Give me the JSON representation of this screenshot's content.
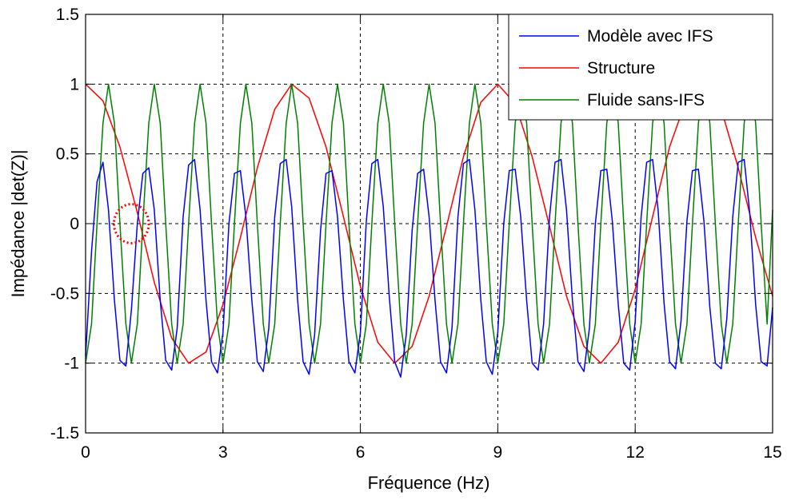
{
  "chart_data": {
    "type": "line",
    "title": "",
    "xlabel": "Fréquence (Hz)",
    "ylabel": "Impédance |det(Z)|",
    "xlim": [
      0,
      15
    ],
    "ylim": [
      -1.5,
      1.5
    ],
    "xticks": [
      0,
      3,
      6,
      9,
      12,
      15
    ],
    "xtick_labels": [
      "0",
      "3",
      "6",
      "9",
      "12",
      "15"
    ],
    "yticks": [
      -1.5,
      -1,
      -0.5,
      0,
      0.5,
      1,
      1.5
    ],
    "ytick_labels": [
      "-1.5",
      "-1",
      "-0.5",
      "0",
      "0.5",
      "1",
      "1.5"
    ],
    "grid": true,
    "legend_position": "top-right",
    "series": [
      {
        "name": "Modèle avec IFS",
        "color": "#0000ff",
        "x": [
          0.0,
          0.13,
          0.25,
          0.38,
          0.5,
          0.63,
          0.75,
          0.88,
          1.0,
          1.13,
          1.25,
          1.38,
          1.5,
          1.63,
          1.75,
          1.88,
          2.0,
          2.13,
          2.25,
          2.38,
          2.5,
          2.63,
          2.75,
          2.88,
          3.0,
          3.13,
          3.25,
          3.38,
          3.5,
          3.63,
          3.75,
          3.88,
          4.0,
          4.13,
          4.25,
          4.38,
          4.5,
          4.63,
          4.75,
          4.88,
          5.0,
          5.13,
          5.25,
          5.38,
          5.5,
          5.63,
          5.75,
          5.88,
          6.0,
          6.13,
          6.25,
          6.38,
          6.5,
          6.63,
          6.75,
          6.88,
          7.0,
          7.13,
          7.25,
          7.38,
          7.5,
          7.63,
          7.75,
          7.88,
          8.0,
          8.13,
          8.25,
          8.38,
          8.5,
          8.63,
          8.75,
          8.88,
          9.0,
          9.13,
          9.25,
          9.38,
          9.5,
          9.63,
          9.75,
          9.88,
          10.0,
          10.13,
          10.25,
          10.38,
          10.5,
          10.63,
          10.75,
          10.88,
          11.0,
          11.13,
          11.25,
          11.38,
          11.5,
          11.63,
          11.75,
          11.88,
          12.0,
          12.13,
          12.25,
          12.38,
          12.5,
          12.63,
          12.75,
          12.88,
          13.0,
          13.13,
          13.25,
          13.38,
          13.5,
          13.63,
          13.75,
          13.88,
          14.0,
          14.13,
          14.25,
          14.38,
          14.5,
          14.63,
          14.75,
          14.88,
          15.0
        ],
        "y": [
          -0.95,
          -0.2,
          0.3,
          0.44,
          0.1,
          -0.55,
          -0.98,
          -1.02,
          -0.62,
          0.0,
          0.36,
          0.4,
          0.1,
          -0.55,
          -0.98,
          -1.05,
          -0.75,
          0.05,
          0.42,
          0.46,
          0.1,
          -0.55,
          -0.99,
          -1.07,
          -0.78,
          0.0,
          0.36,
          0.38,
          0.05,
          -0.55,
          -0.99,
          -1.06,
          -0.75,
          0.05,
          0.43,
          0.46,
          0.12,
          -0.55,
          -0.99,
          -1.08,
          -0.8,
          -0.05,
          0.36,
          0.38,
          0.05,
          -0.55,
          -0.99,
          -1.07,
          -0.78,
          0.02,
          0.43,
          0.46,
          0.12,
          -0.52,
          -0.99,
          -1.1,
          -0.8,
          -0.05,
          0.36,
          0.39,
          0.05,
          -0.55,
          -0.99,
          -1.07,
          -0.75,
          0.05,
          0.43,
          0.46,
          0.1,
          -0.55,
          -0.99,
          -1.08,
          -0.78,
          0.0,
          0.38,
          0.39,
          0.05,
          -0.55,
          -1.0,
          -1.05,
          -0.72,
          0.05,
          0.44,
          0.46,
          0.1,
          -0.55,
          -0.99,
          -1.06,
          -0.75,
          0.0,
          0.38,
          0.39,
          0.02,
          -0.58,
          -1.0,
          -1.05,
          -0.7,
          0.05,
          0.44,
          0.46,
          0.1,
          -0.57,
          -0.99,
          -1.04,
          -0.7,
          0.02,
          0.38,
          0.39,
          0.02,
          -0.6,
          -1.0,
          -1.04,
          -0.68,
          0.05,
          0.44,
          0.46,
          0.08,
          -0.58,
          -0.99,
          -1.02,
          -0.6
        ]
      },
      {
        "name": "Structure",
        "color": "#ff0000",
        "x": [
          0.0,
          0.38,
          0.75,
          1.13,
          1.5,
          1.88,
          2.25,
          2.63,
          3.0,
          3.38,
          3.75,
          4.13,
          4.5,
          4.88,
          5.25,
          5.63,
          6.0,
          6.38,
          6.75,
          7.13,
          7.5,
          7.88,
          8.25,
          8.63,
          9.0,
          9.38,
          9.75,
          10.13,
          10.5,
          10.88,
          11.25,
          11.63,
          12.0,
          12.38,
          12.75,
          13.13,
          13.5,
          13.88,
          14.25,
          14.63,
          15.0
        ],
        "y": [
          1.0,
          0.88,
          0.55,
          0.08,
          -0.42,
          -0.82,
          -1.0,
          -0.92,
          -0.58,
          -0.1,
          0.4,
          0.82,
          1.0,
          0.9,
          0.55,
          0.05,
          -0.45,
          -0.85,
          -1.0,
          -0.88,
          -0.52,
          -0.02,
          0.48,
          0.87,
          1.0,
          0.86,
          0.48,
          -0.02,
          -0.52,
          -0.88,
          -1.0,
          -0.85,
          -0.47,
          0.05,
          0.55,
          0.9,
          1.0,
          0.82,
          0.4,
          -0.1,
          -0.52
        ]
      },
      {
        "name": "Fluide sans-IFS",
        "color": "#008000",
        "x": [
          0.0,
          0.13,
          0.25,
          0.38,
          0.5,
          0.63,
          0.75,
          0.88,
          1.0,
          1.13,
          1.25,
          1.38,
          1.5,
          1.63,
          1.75,
          1.88,
          2.0,
          2.13,
          2.25,
          2.38,
          2.5,
          2.63,
          2.75,
          2.88,
          3.0,
          3.13,
          3.25,
          3.38,
          3.5,
          3.63,
          3.75,
          3.88,
          4.0,
          4.13,
          4.25,
          4.38,
          4.5,
          4.63,
          4.75,
          4.88,
          5.0,
          5.13,
          5.25,
          5.38,
          5.5,
          5.63,
          5.75,
          5.88,
          6.0,
          6.13,
          6.25,
          6.38,
          6.5,
          6.63,
          6.75,
          6.88,
          7.0,
          7.13,
          7.25,
          7.38,
          7.5,
          7.63,
          7.75,
          7.88,
          8.0,
          8.13,
          8.25,
          8.38,
          8.5,
          8.63,
          8.75,
          8.88,
          9.0,
          9.13,
          9.25,
          9.38,
          9.5,
          9.63,
          9.75,
          9.88,
          10.0,
          10.13,
          10.25,
          10.38,
          10.5,
          10.63,
          10.75,
          10.88,
          11.0,
          11.13,
          11.25,
          11.38,
          11.5,
          11.63,
          11.75,
          11.88,
          12.0,
          12.13,
          12.25,
          12.38,
          12.5,
          12.63,
          12.75,
          12.88,
          13.0,
          13.13,
          13.25,
          13.38,
          13.5,
          13.63,
          13.75,
          13.88,
          14.0,
          14.13,
          14.25,
          14.38,
          14.5,
          14.63,
          14.75,
          14.88,
          15.0
        ],
        "y": [
          -1.0,
          -0.72,
          0.0,
          0.72,
          1.0,
          0.72,
          0.0,
          -0.72,
          -1.0,
          -0.72,
          0.0,
          0.72,
          1.0,
          0.72,
          0.0,
          -0.72,
          -1.0,
          -0.72,
          0.0,
          0.72,
          1.0,
          0.72,
          0.0,
          -0.72,
          -1.0,
          -0.72,
          0.0,
          0.72,
          1.0,
          0.72,
          0.0,
          -0.72,
          -1.0,
          -0.72,
          0.0,
          0.72,
          1.0,
          0.72,
          0.0,
          -0.72,
          -1.0,
          -0.72,
          0.0,
          0.72,
          1.0,
          0.72,
          0.0,
          -0.72,
          -1.0,
          -0.72,
          0.0,
          0.72,
          1.0,
          0.72,
          0.0,
          -0.72,
          -1.0,
          -0.72,
          0.0,
          0.72,
          1.0,
          0.72,
          0.0,
          -0.72,
          -1.0,
          -0.72,
          0.0,
          0.72,
          1.0,
          0.72,
          0.0,
          -0.72,
          -1.0,
          -0.72,
          0.0,
          0.72,
          1.0,
          0.72,
          0.0,
          -0.72,
          -1.0,
          -0.72,
          0.0,
          0.72,
          1.0,
          0.72,
          0.0,
          -0.72,
          -1.0,
          -0.72,
          0.0,
          0.72,
          1.0,
          0.72,
          0.0,
          -0.72,
          -1.0,
          -0.72,
          0.0,
          0.72,
          1.0,
          0.72,
          0.0,
          -0.72,
          -1.0,
          -0.72,
          0.0,
          0.72,
          1.0,
          0.72,
          0.0,
          -0.72,
          -1.0,
          -0.72,
          0.0,
          0.72,
          1.0,
          0.72,
          0.0,
          -0.72,
          0.1
        ]
      }
    ],
    "annotations": [
      {
        "type": "circle",
        "style": "dotted",
        "color": "#ff0000",
        "x": 1.0,
        "y": 0.0,
        "rx": 0.38,
        "ry": 0.14
      }
    ]
  }
}
